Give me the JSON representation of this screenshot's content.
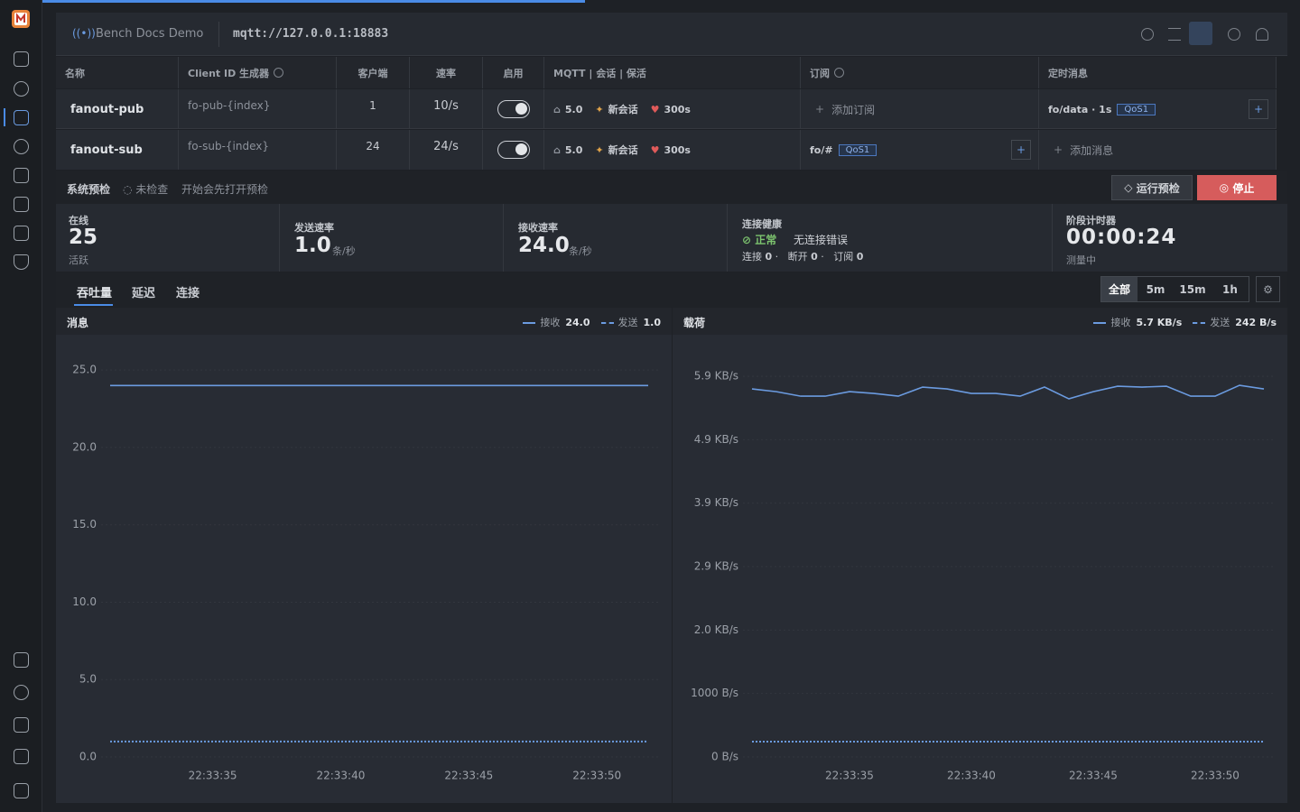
{
  "header": {
    "title": "Bench Docs Demo",
    "url": "mqtt://127.0.0.1:18883"
  },
  "table": {
    "columns": [
      "名称",
      "Client ID 生成器",
      "客户端",
      "速率",
      "启用",
      "MQTT | 会话 | 保活",
      "订阅",
      "定时消息"
    ],
    "rows": [
      {
        "name": "fanout-pub",
        "client_id": "fo-pub-{index}",
        "clients": "1",
        "rate": "10/s",
        "version": "5.0",
        "session": "新会话",
        "keepalive": "300s",
        "subscription": {
          "action": "添加订阅"
        },
        "schedule": {
          "topic": "fo/data · 1s",
          "qos": "QoS1"
        }
      },
      {
        "name": "fanout-sub",
        "client_id": "fo-sub-{index}",
        "clients": "24",
        "rate": "24/s",
        "version": "5.0",
        "session": "新会话",
        "keepalive": "300s",
        "subscription": {
          "topic": "fo/#",
          "qos": "QoS1"
        },
        "schedule": {
          "action": "添加消息"
        }
      }
    ]
  },
  "preflight": {
    "title": "系统预检",
    "status": "未检查",
    "hint": "开始会先打开预检",
    "run": "运行预检",
    "stop": "停止"
  },
  "stats": {
    "online": {
      "label": "在线",
      "value": "25",
      "sub": "活跃"
    },
    "send": {
      "label": "发送速率",
      "value": "1.0",
      "unit": "条/秒"
    },
    "recv": {
      "label": "接收速率",
      "value": "24.0",
      "unit": "条/秒"
    },
    "health": {
      "label": "连接健康",
      "status": "正常",
      "detail": "无连接错误",
      "counts": [
        {
          "label": "连接",
          "value": "0"
        },
        {
          "label": "断开",
          "value": "0"
        },
        {
          "label": "订阅",
          "value": "0"
        }
      ]
    },
    "timer": {
      "label": "阶段计时器",
      "value": "00:00:24",
      "sub": "测量中"
    }
  },
  "tabs": [
    "吞吐量",
    "延迟",
    "连接"
  ],
  "ranges": [
    "全部",
    "5m",
    "15m",
    "1h"
  ],
  "chart_data": [
    {
      "type": "line",
      "title": "消息",
      "x": [
        "22:33:31",
        "22:33:32",
        "22:33:33",
        "22:33:34",
        "22:33:35",
        "22:33:36",
        "22:33:37",
        "22:33:38",
        "22:33:39",
        "22:33:40",
        "22:33:41",
        "22:33:42",
        "22:33:43",
        "22:33:44",
        "22:33:45",
        "22:33:46",
        "22:33:47",
        "22:33:48",
        "22:33:49",
        "22:33:50",
        "22:33:51",
        "22:33:52"
      ],
      "xticks": [
        "22:33:35",
        "22:33:40",
        "22:33:45",
        "22:33:50"
      ],
      "ylim": [
        0,
        26
      ],
      "yticks": [
        {
          "value": 0,
          "label": "0.0"
        },
        {
          "value": 5,
          "label": "5.0"
        },
        {
          "value": 10,
          "label": "10.0"
        },
        {
          "value": 15,
          "label": "15.0"
        },
        {
          "value": 20,
          "label": "20.0"
        },
        {
          "value": 25,
          "label": "25.0"
        }
      ],
      "grid": true,
      "series": [
        {
          "name": "接收",
          "color": "#6b9be0",
          "dashed": false,
          "current": 24,
          "current_label": "24.0",
          "values": [
            24,
            24,
            24,
            24,
            24,
            24,
            24,
            24,
            24,
            24,
            24,
            24,
            24,
            24,
            24,
            24,
            24,
            24,
            24,
            24,
            24,
            24
          ]
        },
        {
          "name": "发送",
          "color": "#6b9be0",
          "dashed": true,
          "current": 1,
          "current_label": "1.0",
          "values": [
            1,
            1,
            1,
            1,
            1,
            1,
            1,
            1,
            1,
            1,
            1,
            1,
            1,
            1,
            1,
            1,
            1,
            1,
            1,
            1,
            1,
            1
          ]
        }
      ]
    },
    {
      "type": "line",
      "title": "载荷",
      "x": [
        "22:33:31",
        "22:33:32",
        "22:33:33",
        "22:33:34",
        "22:33:35",
        "22:33:36",
        "22:33:37",
        "22:33:38",
        "22:33:39",
        "22:33:40",
        "22:33:41",
        "22:33:42",
        "22:33:43",
        "22:33:44",
        "22:33:45",
        "22:33:46",
        "22:33:47",
        "22:33:48",
        "22:33:49",
        "22:33:50",
        "22:33:51",
        "22:33:52"
      ],
      "xticks": [
        "22:33:35",
        "22:33:40",
        "22:33:45",
        "22:33:50"
      ],
      "ylim": [
        0,
        6300
      ],
      "yticks": [
        {
          "value": 0,
          "label": "0 B/s"
        },
        {
          "value": 1000,
          "label": "1000 B/s"
        },
        {
          "value": 2000,
          "label": "2.0 KB/s"
        },
        {
          "value": 3000,
          "label": "2.9 KB/s"
        },
        {
          "value": 4000,
          "label": "3.9 KB/s"
        },
        {
          "value": 5000,
          "label": "4.9 KB/s"
        },
        {
          "value": 6000,
          "label": "5.9 KB/s"
        }
      ],
      "grid": true,
      "series": [
        {
          "name": "接收",
          "color": "#6b9be0",
          "dashed": false,
          "current": 5837,
          "current_label": "5.7 KB/s",
          "values": [
            5801,
            5758,
            5687,
            5687,
            5758,
            5730,
            5687,
            5830,
            5801,
            5730,
            5730,
            5687,
            5830,
            5645,
            5758,
            5844,
            5830,
            5844,
            5687,
            5687,
            5858,
            5801
          ]
        },
        {
          "name": "发送",
          "color": "#6b9be0",
          "dashed": true,
          "current": 242,
          "current_label": "242 B/s",
          "values": [
            242,
            242,
            242,
            242,
            242,
            242,
            242,
            242,
            242,
            242,
            242,
            242,
            242,
            242,
            242,
            242,
            242,
            242,
            242,
            242,
            242,
            242
          ]
        }
      ]
    }
  ]
}
